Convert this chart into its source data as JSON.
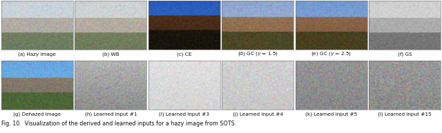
{
  "top_labels": [
    "(a) Hazy image",
    "(b) WB",
    "(c) CE",
    "(d) GC ($\\gamma$ = 1.5)",
    "(e) GC ($\\gamma$ = 2.5)",
    "(f) GS"
  ],
  "bottom_labels": [
    "(g) Dehazed image",
    "(h) Learned input #1",
    "(i) Learned input #3",
    "(j) Learned input #4",
    "(k) Learned input #5",
    "(l) Learned input #15"
  ],
  "caption": "Fig. 10.  Visualization of the derived and learned inputs for a hazy image from SOTS.",
  "n_cols": 6,
  "fig_width": 6.4,
  "fig_height": 1.93,
  "background_color": "#ffffff",
  "label_fontsize": 5.2,
  "caption_fontsize": 5.8
}
